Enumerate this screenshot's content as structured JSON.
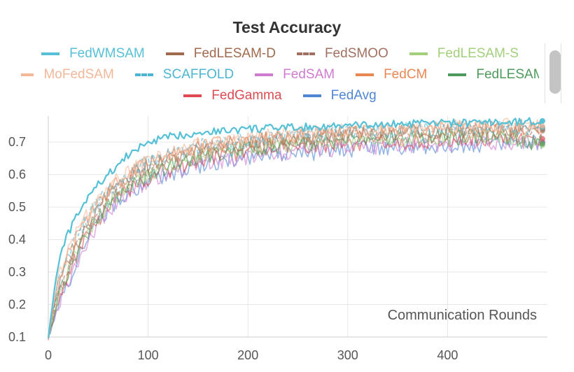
{
  "chart_data": {
    "type": "line",
    "title": "Test Accuracy",
    "xlabel": "Communication Rounds",
    "ylabel": "",
    "xlim": [
      0,
      500
    ],
    "ylim": [
      0.1,
      0.78
    ],
    "xticks": [
      0,
      100,
      200,
      300,
      400
    ],
    "yticks": [
      0.1,
      0.2,
      0.3,
      0.4,
      0.5,
      0.6,
      0.7
    ],
    "grid": true,
    "legend_position": "top",
    "series": [
      {
        "name": "FedWMSAM",
        "color": "#56c1d6",
        "dash": false,
        "x": [
          0,
          5,
          10,
          20,
          30,
          40,
          50,
          60,
          70,
          80,
          100,
          120,
          150,
          200,
          250,
          300,
          350,
          400,
          450,
          495
        ],
        "values": [
          0.1,
          0.22,
          0.33,
          0.42,
          0.48,
          0.53,
          0.57,
          0.6,
          0.63,
          0.66,
          0.7,
          0.715,
          0.73,
          0.74,
          0.745,
          0.75,
          0.755,
          0.758,
          0.76,
          0.765
        ]
      },
      {
        "name": "FedLESAM-D",
        "color": "#a06a4f",
        "dash": false,
        "x": [
          0,
          5,
          10,
          20,
          30,
          40,
          50,
          60,
          80,
          100,
          120,
          150,
          200,
          250,
          300,
          350,
          400,
          450,
          495
        ],
        "values": [
          0.1,
          0.18,
          0.25,
          0.33,
          0.4,
          0.45,
          0.5,
          0.54,
          0.59,
          0.63,
          0.65,
          0.68,
          0.7,
          0.715,
          0.725,
          0.73,
          0.735,
          0.74,
          0.74
        ]
      },
      {
        "name": "FedSMOO",
        "color": "#a07060",
        "dash": true,
        "x": [
          0,
          5,
          10,
          20,
          30,
          40,
          50,
          60,
          80,
          100,
          120,
          150,
          200,
          250,
          300,
          350,
          400,
          450,
          495
        ],
        "values": [
          0.1,
          0.17,
          0.24,
          0.32,
          0.39,
          0.44,
          0.49,
          0.53,
          0.58,
          0.62,
          0.645,
          0.675,
          0.695,
          0.71,
          0.72,
          0.725,
          0.73,
          0.735,
          0.735
        ]
      },
      {
        "name": "FedLESAM-S",
        "color": "#a3cf7c",
        "dash": false,
        "x": [
          0,
          5,
          10,
          20,
          30,
          40,
          50,
          60,
          80,
          100,
          120,
          150,
          200,
          250,
          300,
          350,
          400,
          450,
          495
        ],
        "values": [
          0.1,
          0.16,
          0.22,
          0.3,
          0.37,
          0.42,
          0.47,
          0.51,
          0.56,
          0.6,
          0.625,
          0.655,
          0.68,
          0.695,
          0.705,
          0.71,
          0.715,
          0.72,
          0.69
        ]
      },
      {
        "name": "MoFedSAM",
        "color": "#f3b79a",
        "dash": false,
        "x": [
          0,
          5,
          10,
          20,
          30,
          40,
          50,
          60,
          80,
          100,
          120,
          150,
          200,
          250,
          300,
          350,
          400,
          450,
          495
        ],
        "values": [
          0.1,
          0.2,
          0.28,
          0.36,
          0.43,
          0.48,
          0.52,
          0.56,
          0.61,
          0.65,
          0.67,
          0.69,
          0.71,
          0.725,
          0.735,
          0.74,
          0.745,
          0.748,
          0.75
        ]
      },
      {
        "name": "SCAFFOLD",
        "color": "#4cb6d2",
        "dash": true,
        "x": [
          0,
          5,
          10,
          20,
          30,
          40,
          50,
          60,
          80,
          100,
          120,
          150,
          200,
          250,
          300,
          350,
          400,
          450,
          495
        ],
        "values": [
          0.1,
          0.19,
          0.27,
          0.35,
          0.42,
          0.47,
          0.51,
          0.55,
          0.6,
          0.64,
          0.66,
          0.685,
          0.705,
          0.72,
          0.73,
          0.735,
          0.74,
          0.745,
          0.745
        ]
      },
      {
        "name": "FedSAM",
        "color": "#cf7bd0",
        "dash": false,
        "x": [
          0,
          5,
          10,
          20,
          30,
          40,
          50,
          60,
          80,
          100,
          120,
          150,
          200,
          250,
          300,
          350,
          400,
          450,
          495
        ],
        "values": [
          0.1,
          0.14,
          0.2,
          0.27,
          0.34,
          0.4,
          0.45,
          0.49,
          0.54,
          0.58,
          0.6,
          0.63,
          0.655,
          0.67,
          0.68,
          0.69,
          0.695,
          0.7,
          0.7
        ]
      },
      {
        "name": "FedCM",
        "color": "#e98753",
        "dash": false,
        "x": [
          0,
          5,
          10,
          20,
          30,
          40,
          50,
          60,
          80,
          100,
          120,
          150,
          200,
          250,
          300,
          350,
          400,
          450,
          495
        ],
        "values": [
          0.1,
          0.19,
          0.27,
          0.35,
          0.42,
          0.47,
          0.51,
          0.55,
          0.6,
          0.64,
          0.66,
          0.685,
          0.705,
          0.72,
          0.73,
          0.735,
          0.74,
          0.745,
          0.745
        ]
      },
      {
        "name": "FedLESAM",
        "color": "#4d9a5c",
        "dash": false,
        "x": [
          0,
          5,
          10,
          20,
          30,
          40,
          50,
          60,
          80,
          100,
          120,
          150,
          200,
          250,
          300,
          350,
          400,
          450,
          495
        ],
        "values": [
          0.1,
          0.16,
          0.22,
          0.3,
          0.37,
          0.42,
          0.47,
          0.51,
          0.56,
          0.6,
          0.625,
          0.655,
          0.68,
          0.695,
          0.705,
          0.71,
          0.715,
          0.72,
          0.695
        ]
      },
      {
        "name": "FedGamma",
        "color": "#dc4b52",
        "dash": false,
        "x": [
          0,
          5,
          10,
          20,
          30,
          40,
          50,
          60,
          80,
          100,
          120,
          150,
          200,
          250,
          300,
          350,
          400,
          450,
          495
        ],
        "values": [
          0.1,
          0.15,
          0.21,
          0.29,
          0.36,
          0.41,
          0.46,
          0.5,
          0.55,
          0.59,
          0.615,
          0.645,
          0.67,
          0.685,
          0.695,
          0.7,
          0.705,
          0.71,
          0.71
        ]
      },
      {
        "name": "FedAvg",
        "color": "#4f86d4",
        "dash": false,
        "x": [
          0,
          5,
          10,
          20,
          30,
          40,
          50,
          60,
          80,
          100,
          120,
          150,
          200,
          250,
          300,
          350,
          400,
          450,
          495
        ],
        "values": [
          0.1,
          0.14,
          0.19,
          0.27,
          0.34,
          0.4,
          0.45,
          0.49,
          0.54,
          0.58,
          0.6,
          0.625,
          0.65,
          0.665,
          0.675,
          0.685,
          0.69,
          0.695,
          0.7
        ]
      }
    ]
  }
}
